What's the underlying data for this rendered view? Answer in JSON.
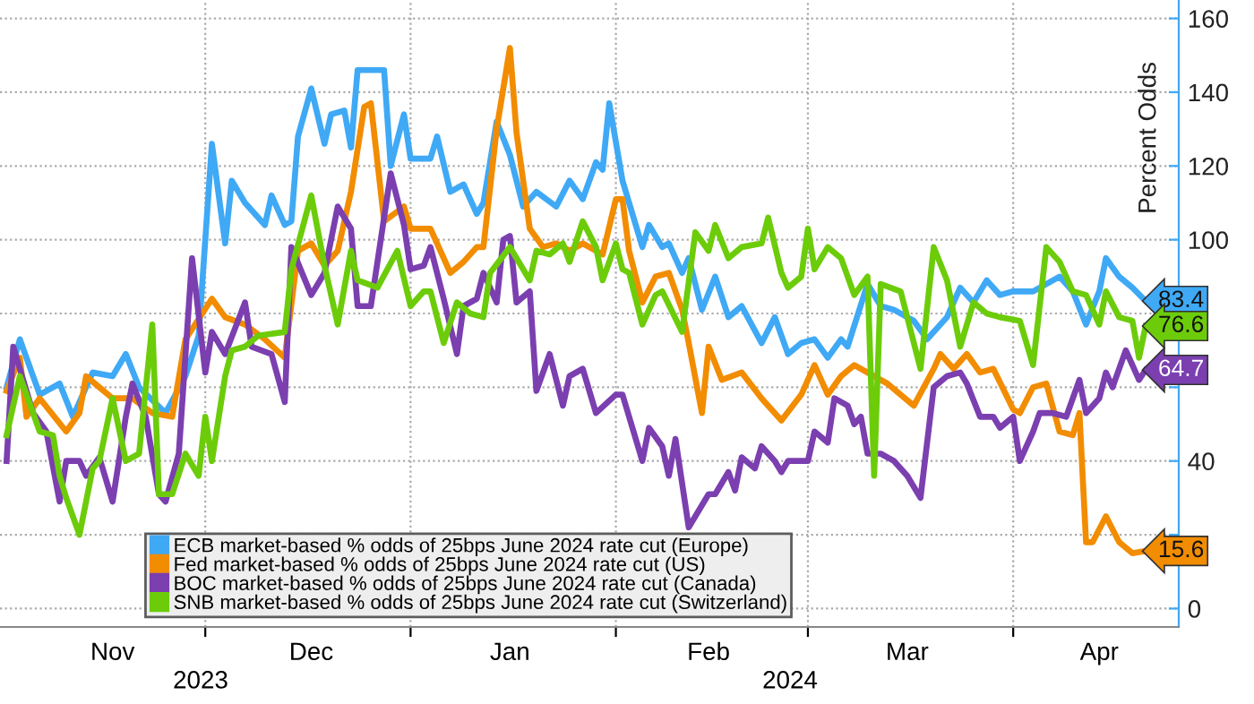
{
  "chart_data": {
    "type": "line",
    "ylabel": "Percent Odds",
    "xlim": [
      "2023-10-31",
      "2024-04-26"
    ],
    "ylim": [
      -5,
      165
    ],
    "yticks": [
      0,
      {
        "value": 20,
        "label": null
      },
      40,
      {
        "value": 60,
        "label": null
      },
      {
        "value": 80,
        "label": null
      },
      100,
      120,
      140,
      160
    ],
    "xticks": [
      {
        "value": "2023-12-01",
        "label": null
      },
      {
        "value": "2024-01-01",
        "label": null
      },
      {
        "value": "2024-02-01",
        "label": null
      },
      {
        "value": "2024-03-01",
        "label": null
      },
      {
        "value": "2024-04-01",
        "label": null
      },
      {
        "value": "2023-11-17",
        "label": "Nov"
      },
      {
        "value": "2023-12-17",
        "label": "Dec"
      },
      {
        "value": "2024-01-16",
        "label": "Jan"
      },
      {
        "value": "2024-02-15",
        "label": "Feb"
      },
      {
        "value": "2024-03-16",
        "label": "Mar"
      },
      {
        "value": "2024-04-14",
        "label": "Apr"
      }
    ],
    "annotations": [
      "2023",
      "2024"
    ],
    "grid": true,
    "legend": "bottom left",
    "series": [
      {
        "name": "ECB market-based % odds of 25bps June 2024 rate cut (Europe)",
        "color": "#3fa9f5",
        "x": [
          "2023-11-01",
          "2023-11-03",
          "2023-11-06",
          "2023-11-09",
          "2023-11-11",
          "2023-11-14",
          "2023-11-17",
          "2023-11-19",
          "2023-11-21",
          "2023-11-25",
          "2023-11-28",
          "2023-11-30",
          "2023-12-02",
          "2023-12-04",
          "2023-12-05",
          "2023-12-07",
          "2023-12-10",
          "2023-12-11",
          "2023-12-13",
          "2023-12-14",
          "2023-12-15",
          "2023-12-17",
          "2023-12-19",
          "2023-12-20",
          "2023-12-22",
          "2023-12-23",
          "2023-12-24",
          "2023-12-28",
          "2023-12-29",
          "2023-12-31",
          "2024-01-01",
          "2024-01-04",
          "2024-01-05",
          "2024-01-07",
          "2024-01-09",
          "2024-01-11",
          "2024-01-12",
          "2024-01-14",
          "2024-01-16",
          "2024-01-18",
          "2024-01-20",
          "2024-01-23",
          "2024-01-25",
          "2024-01-27",
          "2024-01-29",
          "2024-01-30",
          "2024-01-31",
          "2024-02-02",
          "2024-02-05",
          "2024-02-06",
          "2024-02-08",
          "2024-02-09",
          "2024-02-11",
          "2024-02-12",
          "2024-02-14",
          "2024-02-16",
          "2024-02-18",
          "2024-02-20",
          "2024-02-23",
          "2024-02-25",
          "2024-02-27",
          "2024-02-29",
          "2024-03-02",
          "2024-03-04",
          "2024-03-06",
          "2024-03-07",
          "2024-03-10",
          "2024-03-12",
          "2024-03-14",
          "2024-03-17",
          "2024-03-19",
          "2024-03-22",
          "2024-03-24",
          "2024-03-26",
          "2024-03-28",
          "2024-03-30",
          "2024-04-01",
          "2024-04-04",
          "2024-04-08",
          "2024-04-10",
          "2024-04-12",
          "2024-04-14",
          "2024-04-15",
          "2024-04-17",
          "2024-04-19",
          "2024-04-21"
        ],
        "values": [
          60,
          73,
          58,
          61,
          52,
          64,
          63,
          69,
          60,
          53,
          63,
          74,
          126,
          99,
          116,
          110,
          104,
          112,
          104,
          105,
          128,
          141,
          126,
          134,
          135,
          125,
          146,
          146,
          120,
          134,
          122,
          122,
          128,
          113,
          115,
          107,
          110,
          132,
          123,
          109,
          113,
          109,
          116,
          111,
          121,
          119,
          137,
          116,
          98,
          104,
          98,
          99,
          91,
          95,
          81,
          90,
          79,
          82,
          72,
          79,
          69,
          72,
          73,
          68,
          73,
          71,
          88,
          82,
          81,
          78,
          73,
          79,
          87,
          83,
          89,
          85,
          86,
          86,
          90,
          86,
          77,
          86,
          95,
          90,
          87,
          83.4
        ],
        "value_labels": [
          null,
          null,
          null,
          null,
          null,
          null,
          null,
          null,
          null,
          null,
          null,
          null,
          null,
          null,
          null,
          null,
          null,
          null,
          null,
          null,
          null,
          null,
          null,
          null,
          null,
          null,
          null,
          null,
          null,
          null,
          null,
          null,
          null,
          null,
          null,
          null,
          null,
          null,
          null,
          null,
          null,
          null,
          null,
          null,
          null,
          null,
          null,
          null,
          null,
          null,
          null,
          null,
          null,
          null,
          null,
          null,
          null,
          null,
          null,
          null,
          null,
          null,
          null,
          null,
          null,
          null,
          null,
          null,
          null,
          null,
          null,
          null,
          null,
          null,
          null,
          null,
          null,
          null,
          null,
          null,
          null,
          null,
          null,
          null,
          null,
          "83.4"
        ]
      },
      {
        "name": "Fed market-based % odds of 25bps June 2024 rate cut (US)",
        "color": "#f28c00",
        "x": [
          "2023-11-01",
          "2023-11-03",
          "2023-11-04",
          "2023-11-06",
          "2023-11-10",
          "2023-11-12",
          "2023-11-13",
          "2023-11-15",
          "2023-11-17",
          "2023-11-20",
          "2023-11-23",
          "2023-11-26",
          "2023-11-28",
          "2023-12-02",
          "2023-12-04",
          "2023-12-07",
          "2023-12-10",
          "2023-12-13",
          "2023-12-15",
          "2023-12-17",
          "2023-12-19",
          "2023-12-21",
          "2023-12-23",
          "2023-12-25",
          "2023-12-26",
          "2023-12-28",
          "2023-12-31",
          "2024-01-01",
          "2024-01-04",
          "2024-01-07",
          "2024-01-09",
          "2024-01-11",
          "2024-01-12",
          "2024-01-14",
          "2024-01-16",
          "2024-01-17",
          "2024-01-19",
          "2024-01-21",
          "2024-01-23",
          "2024-01-25",
          "2024-01-27",
          "2024-01-30",
          "2024-02-01",
          "2024-02-02",
          "2024-02-03",
          "2024-02-05",
          "2024-02-07",
          "2024-02-09",
          "2024-02-11",
          "2024-02-12",
          "2024-02-14",
          "2024-02-15",
          "2024-02-17",
          "2024-02-20",
          "2024-02-23",
          "2024-02-26",
          "2024-02-29",
          "2024-03-02",
          "2024-03-04",
          "2024-03-06",
          "2024-03-08",
          "2024-03-11",
          "2024-03-13",
          "2024-03-17",
          "2024-03-20",
          "2024-03-21",
          "2024-03-23",
          "2024-03-25",
          "2024-03-27",
          "2024-03-29",
          "2024-04-01",
          "2024-04-02",
          "2024-04-04",
          "2024-04-06",
          "2024-04-08",
          "2024-04-10",
          "2024-04-11",
          "2024-04-12",
          "2024-04-13",
          "2024-04-15",
          "2024-04-17",
          "2024-04-19",
          "2024-04-21"
        ],
        "values": [
          59,
          68,
          52,
          57,
          48,
          53,
          63,
          60,
          57,
          57,
          53,
          52,
          73,
          84,
          79,
          77,
          73,
          68,
          97,
          99,
          93,
          97,
          113,
          136,
          137,
          105,
          109,
          103,
          103,
          91,
          94,
          98,
          98,
          130,
          152,
          129,
          103,
          98,
          99,
          97,
          99,
          96,
          111,
          111,
          97,
          83,
          90,
          91,
          81,
          72,
          53,
          71,
          62,
          64,
          57,
          51,
          58,
          66,
          58,
          63,
          66,
          63,
          61,
          55,
          65,
          69,
          65,
          69,
          64,
          65,
          54,
          53,
          60,
          61,
          48,
          47,
          53,
          18,
          18,
          25,
          18,
          15,
          15.6
        ],
        "value_labels": [
          null,
          null,
          null,
          null,
          null,
          null,
          null,
          null,
          null,
          null,
          null,
          null,
          null,
          null,
          null,
          null,
          null,
          null,
          null,
          null,
          null,
          null,
          null,
          null,
          null,
          null,
          null,
          null,
          null,
          null,
          null,
          null,
          null,
          null,
          null,
          null,
          null,
          null,
          null,
          null,
          null,
          null,
          null,
          null,
          null,
          null,
          null,
          null,
          null,
          null,
          null,
          null,
          null,
          null,
          null,
          null,
          null,
          null,
          null,
          null,
          null,
          null,
          null,
          null,
          null,
          null,
          null,
          null,
          null,
          null,
          null,
          null,
          null,
          null,
          null,
          null,
          null,
          null,
          null,
          null,
          null,
          null,
          "15.6"
        ]
      },
      {
        "name": "BOC market-based % odds of 25bps June 2024 rate cut (Canada)",
        "color": "#7b3fb0",
        "x": [
          "2023-11-01",
          "2023-11-02",
          "2023-11-05",
          "2023-11-07",
          "2023-11-09",
          "2023-11-10",
          "2023-11-12",
          "2023-11-13",
          "2023-11-15",
          "2023-11-17",
          "2023-11-19",
          "2023-11-20",
          "2023-11-22",
          "2023-11-24",
          "2023-11-25",
          "2023-11-27",
          "2023-11-29",
          "2023-12-01",
          "2023-12-02",
          "2023-12-04",
          "2023-12-07",
          "2023-12-08",
          "2023-12-11",
          "2023-12-13",
          "2023-12-14",
          "2023-12-17",
          "2023-12-19",
          "2023-12-21",
          "2023-12-23",
          "2023-12-24",
          "2023-12-26",
          "2023-12-29",
          "2023-12-31",
          "2024-01-01",
          "2024-01-03",
          "2024-01-04",
          "2024-01-06",
          "2024-01-08",
          "2024-01-09",
          "2024-01-11",
          "2024-01-12",
          "2024-01-14",
          "2024-01-15",
          "2024-01-16",
          "2024-01-17",
          "2024-01-19",
          "2024-01-20",
          "2024-01-22",
          "2024-01-24",
          "2024-01-25",
          "2024-01-27",
          "2024-01-29",
          "2024-02-01",
          "2024-02-02",
          "2024-02-05",
          "2024-02-06",
          "2024-02-08",
          "2024-02-09",
          "2024-02-10",
          "2024-02-12",
          "2024-02-15",
          "2024-02-16",
          "2024-02-18",
          "2024-02-19",
          "2024-02-20",
          "2024-02-22",
          "2024-02-23",
          "2024-02-25",
          "2024-02-26",
          "2024-02-27",
          "2024-03-01",
          "2024-03-02",
          "2024-03-04",
          "2024-03-05",
          "2024-03-07",
          "2024-03-08",
          "2024-03-09",
          "2024-03-10",
          "2024-03-12",
          "2024-03-14",
          "2024-03-16",
          "2024-03-18",
          "2024-03-20",
          "2024-03-22",
          "2024-03-24",
          "2024-03-25",
          "2024-03-27",
          "2024-03-29",
          "2024-03-30",
          "2024-04-01",
          "2024-04-02",
          "2024-04-04",
          "2024-04-05",
          "2024-04-07",
          "2024-04-09",
          "2024-04-11",
          "2024-04-12",
          "2024-04-14",
          "2024-04-15",
          "2024-04-16",
          "2024-04-18",
          "2024-04-20",
          "2024-04-21"
        ],
        "values": [
          40,
          71,
          53,
          48,
          29,
          40,
          40,
          36,
          41,
          29,
          52,
          61,
          52,
          31,
          29,
          42,
          95,
          64,
          75,
          69,
          83,
          71,
          69,
          56,
          98,
          85,
          91,
          109,
          103,
          82,
          82,
          118,
          104,
          92,
          93,
          98,
          84,
          69,
          82,
          84,
          91,
          83,
          100,
          101,
          83,
          86,
          59,
          69,
          55,
          63,
          65,
          53,
          58,
          58,
          40,
          49,
          44,
          36,
          46,
          22,
          31,
          31,
          37,
          32,
          41,
          38,
          44,
          40,
          37,
          40,
          40,
          48,
          45,
          57,
          55,
          50,
          52,
          42,
          42,
          40,
          36,
          30,
          60,
          63,
          64,
          61,
          52,
          52,
          49,
          52,
          40,
          48,
          53,
          53,
          52,
          62,
          53,
          57,
          64,
          60,
          70,
          62,
          64.7
        ],
        "value_labels": [
          null,
          null,
          null,
          null,
          null,
          null,
          null,
          null,
          null,
          null,
          null,
          null,
          null,
          null,
          null,
          null,
          null,
          null,
          null,
          null,
          null,
          null,
          null,
          null,
          null,
          null,
          null,
          null,
          null,
          null,
          null,
          null,
          null,
          null,
          null,
          null,
          null,
          null,
          null,
          null,
          null,
          null,
          null,
          null,
          null,
          null,
          null,
          null,
          null,
          null,
          null,
          null,
          null,
          null,
          null,
          null,
          null,
          null,
          null,
          null,
          null,
          null,
          null,
          null,
          null,
          null,
          null,
          null,
          null,
          null,
          null,
          null,
          null,
          null,
          null,
          null,
          null,
          null,
          null,
          null,
          null,
          null,
          null,
          null,
          null,
          null,
          null,
          null,
          null,
          null,
          null,
          null,
          null,
          null,
          null,
          null,
          null,
          null,
          null,
          null,
          null,
          null,
          "64.7"
        ]
      },
      {
        "name": "SNB market-based % odds of 25bps June 2024 rate cut (Switzerland)",
        "color": "#6ccc0a",
        "x": [
          "2023-11-01",
          "2023-11-03",
          "2023-11-06",
          "2023-11-08",
          "2023-11-09",
          "2023-11-10",
          "2023-11-12",
          "2023-11-14",
          "2023-11-15",
          "2023-11-17",
          "2023-11-19",
          "2023-11-21",
          "2023-11-23",
          "2023-11-24",
          "2023-11-26",
          "2023-11-28",
          "2023-11-30",
          "2023-12-01",
          "2023-12-02",
          "2023-12-04",
          "2023-12-05",
          "2023-12-07",
          "2023-12-09",
          "2023-12-13",
          "2023-12-14",
          "2023-12-17",
          "2023-12-19",
          "2023-12-21",
          "2023-12-23",
          "2023-12-24",
          "2023-12-27",
          "2023-12-30",
          "2024-01-01",
          "2024-01-03",
          "2024-01-04",
          "2024-01-06",
          "2024-01-08",
          "2024-01-10",
          "2024-01-12",
          "2024-01-13",
          "2024-01-16",
          "2024-01-17",
          "2024-01-19",
          "2024-01-20",
          "2024-01-22",
          "2024-01-24",
          "2024-01-25",
          "2024-01-27",
          "2024-01-29",
          "2024-01-30",
          "2024-02-01",
          "2024-02-02",
          "2024-02-03",
          "2024-02-05",
          "2024-02-07",
          "2024-02-08",
          "2024-02-11",
          "2024-02-13",
          "2024-02-15",
          "2024-02-16",
          "2024-02-18",
          "2024-02-20",
          "2024-02-23",
          "2024-02-24",
          "2024-02-26",
          "2024-02-27",
          "2024-02-29",
          "2024-03-01",
          "2024-03-02",
          "2024-03-04",
          "2024-03-06",
          "2024-03-08",
          "2024-03-10",
          "2024-03-11",
          "2024-03-12",
          "2024-03-15",
          "2024-03-18",
          "2024-03-20",
          "2024-03-22",
          "2024-03-24",
          "2024-03-26",
          "2024-03-28",
          "2024-03-30",
          "2024-04-02",
          "2024-04-04",
          "2024-04-06",
          "2024-04-08",
          "2024-04-10",
          "2024-04-12",
          "2024-04-14",
          "2024-04-15",
          "2024-04-17",
          "2024-04-19",
          "2024-04-20",
          "2024-04-21"
        ],
        "values": [
          47,
          63,
          48,
          47,
          36,
          30,
          20,
          38,
          40,
          57,
          40,
          42,
          77,
          31,
          31,
          42,
          36,
          52,
          40,
          63,
          70,
          71,
          74,
          75,
          92,
          112,
          93,
          77,
          97,
          89,
          87,
          97,
          82,
          86,
          86,
          72,
          83,
          80,
          79,
          91,
          98,
          95,
          89,
          97,
          96,
          99,
          94,
          105,
          98,
          89,
          99,
          92,
          91,
          77,
          85,
          86,
          75,
          102,
          97,
          104,
          95,
          98,
          99,
          106,
          91,
          87,
          90,
          103,
          92,
          98,
          95,
          85,
          90,
          36,
          88,
          86,
          65,
          98,
          89,
          71,
          83,
          80,
          79,
          78,
          66,
          98,
          94,
          86,
          85,
          77,
          86,
          79,
          78,
          68,
          76.6
        ],
        "value_labels": [
          null,
          null,
          null,
          null,
          null,
          null,
          null,
          null,
          null,
          null,
          null,
          null,
          null,
          null,
          null,
          null,
          null,
          null,
          null,
          null,
          null,
          null,
          null,
          null,
          null,
          null,
          null,
          null,
          null,
          null,
          null,
          null,
          null,
          null,
          null,
          null,
          null,
          null,
          null,
          null,
          null,
          null,
          null,
          null,
          null,
          null,
          null,
          null,
          null,
          null,
          null,
          null,
          null,
          null,
          null,
          null,
          null,
          null,
          null,
          null,
          null,
          null,
          null,
          null,
          null,
          null,
          null,
          null,
          null,
          null,
          null,
          null,
          null,
          null,
          null,
          null,
          null,
          null,
          null,
          null,
          null,
          null,
          null,
          null,
          null,
          null,
          null,
          null,
          null,
          null,
          null,
          null,
          null,
          null,
          "76.6"
        ]
      }
    ]
  }
}
